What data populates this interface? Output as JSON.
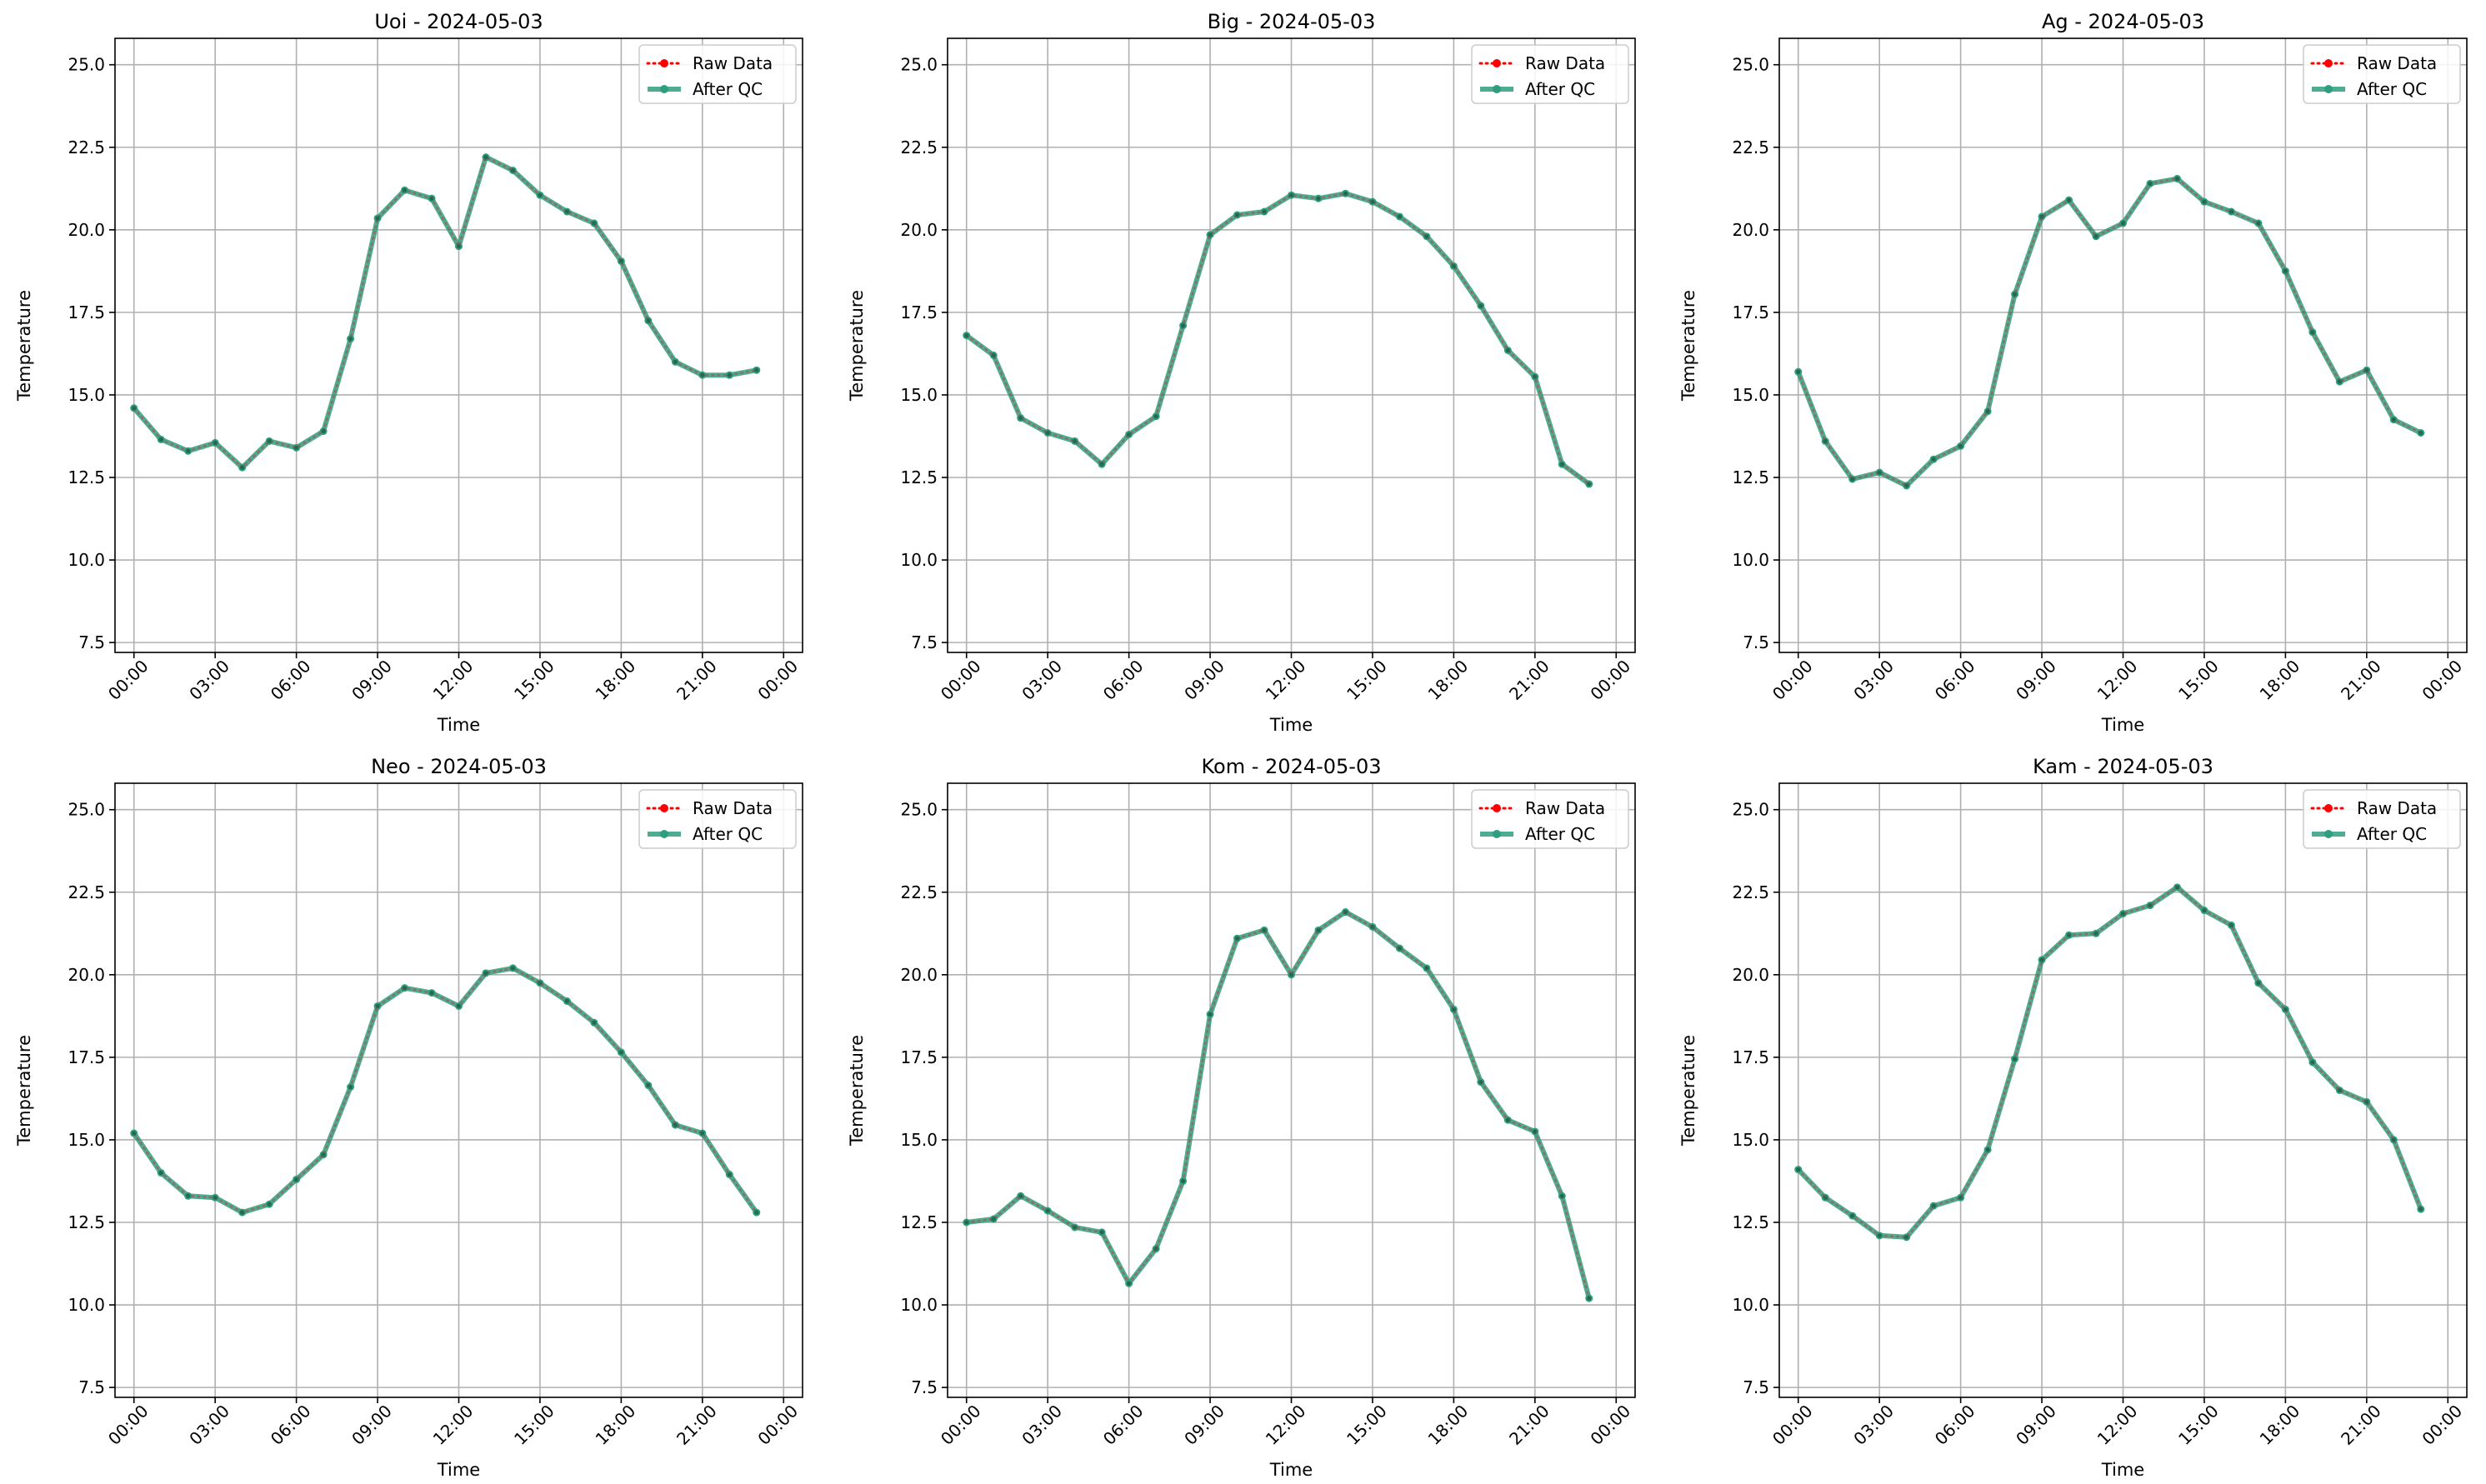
{
  "colors": {
    "raw": "#ff0000",
    "qc": "#2e9e7e",
    "grid": "#b0b0b0",
    "axis": "#000000"
  },
  "legend": {
    "raw_label": "Raw Data",
    "qc_label": "After QC",
    "placement": "upper-right"
  },
  "chart_data": [
    {
      "type": "line",
      "title": "Uoi - 2024-05-03",
      "xlabel": "Time",
      "ylabel": "Temperature",
      "ylim": [
        7.2,
        25.8
      ],
      "yticks": [
        "7.5",
        "10.0",
        "12.5",
        "15.0",
        "17.5",
        "20.0",
        "22.5",
        "25.0"
      ],
      "xticks": [
        "00:00",
        "03:00",
        "06:00",
        "09:00",
        "12:00",
        "15:00",
        "18:00",
        "21:00",
        "00:00"
      ],
      "grid": true,
      "x": [
        "00:00",
        "01:00",
        "02:00",
        "03:00",
        "04:00",
        "05:00",
        "06:00",
        "07:00",
        "08:00",
        "09:00",
        "10:00",
        "11:00",
        "12:00",
        "13:00",
        "14:00",
        "15:00",
        "16:00",
        "17:00",
        "18:00",
        "19:00",
        "20:00",
        "21:00",
        "22:00",
        "23:00"
      ],
      "series": [
        {
          "name": "Raw Data",
          "values": [
            14.6,
            13.65,
            13.3,
            13.55,
            12.8,
            13.6,
            13.4,
            13.9,
            16.7,
            20.35,
            21.2,
            20.95,
            19.5,
            22.2,
            21.8,
            21.05,
            20.55,
            20.2,
            19.05,
            17.25,
            16.0,
            15.6,
            15.6,
            15.75
          ]
        },
        {
          "name": "After QC",
          "values": [
            14.6,
            13.65,
            13.3,
            13.55,
            12.8,
            13.6,
            13.4,
            13.9,
            16.7,
            20.35,
            21.2,
            20.95,
            19.5,
            22.2,
            21.8,
            21.05,
            20.55,
            20.2,
            19.05,
            17.25,
            16.0,
            15.6,
            15.6,
            15.75
          ]
        }
      ]
    },
    {
      "type": "line",
      "title": "Big - 2024-05-03",
      "xlabel": "Time",
      "ylabel": "Temperature",
      "ylim": [
        7.2,
        25.8
      ],
      "yticks": [
        "7.5",
        "10.0",
        "12.5",
        "15.0",
        "17.5",
        "20.0",
        "22.5",
        "25.0"
      ],
      "xticks": [
        "00:00",
        "03:00",
        "06:00",
        "09:00",
        "12:00",
        "15:00",
        "18:00",
        "21:00",
        "00:00"
      ],
      "grid": true,
      "x": [
        "00:00",
        "01:00",
        "02:00",
        "03:00",
        "04:00",
        "05:00",
        "06:00",
        "07:00",
        "08:00",
        "09:00",
        "10:00",
        "11:00",
        "12:00",
        "13:00",
        "14:00",
        "15:00",
        "16:00",
        "17:00",
        "18:00",
        "19:00",
        "20:00",
        "21:00",
        "22:00",
        "23:00"
      ],
      "series": [
        {
          "name": "Raw Data",
          "values": [
            16.8,
            16.2,
            14.3,
            13.85,
            13.6,
            12.9,
            13.8,
            14.35,
            17.1,
            19.85,
            20.45,
            20.55,
            21.05,
            20.95,
            21.1,
            20.85,
            20.4,
            19.8,
            18.9,
            17.7,
            16.35,
            15.55,
            12.9,
            12.3
          ]
        },
        {
          "name": "After QC",
          "values": [
            16.8,
            16.2,
            14.3,
            13.85,
            13.6,
            12.9,
            13.8,
            14.35,
            17.1,
            19.85,
            20.45,
            20.55,
            21.05,
            20.95,
            21.1,
            20.85,
            20.4,
            19.8,
            18.9,
            17.7,
            16.35,
            15.55,
            12.9,
            12.3
          ]
        }
      ]
    },
    {
      "type": "line",
      "title": "Ag - 2024-05-03",
      "xlabel": "Time",
      "ylabel": "Temperature",
      "ylim": [
        7.2,
        25.8
      ],
      "yticks": [
        "7.5",
        "10.0",
        "12.5",
        "15.0",
        "17.5",
        "20.0",
        "22.5",
        "25.0"
      ],
      "xticks": [
        "00:00",
        "03:00",
        "06:00",
        "09:00",
        "12:00",
        "15:00",
        "18:00",
        "21:00",
        "00:00"
      ],
      "grid": true,
      "x": [
        "00:00",
        "01:00",
        "02:00",
        "03:00",
        "04:00",
        "05:00",
        "06:00",
        "07:00",
        "08:00",
        "09:00",
        "10:00",
        "11:00",
        "12:00",
        "13:00",
        "14:00",
        "15:00",
        "16:00",
        "17:00",
        "18:00",
        "19:00",
        "20:00",
        "21:00",
        "22:00",
        "23:00"
      ],
      "series": [
        {
          "name": "Raw Data",
          "values": [
            15.7,
            13.6,
            12.45,
            12.65,
            12.25,
            13.05,
            13.45,
            14.5,
            18.05,
            20.4,
            20.9,
            19.8,
            20.2,
            21.4,
            21.55,
            20.85,
            20.55,
            20.2,
            18.75,
            16.9,
            15.4,
            15.75,
            14.25,
            13.85
          ]
        },
        {
          "name": "After QC",
          "values": [
            15.7,
            13.6,
            12.45,
            12.65,
            12.25,
            13.05,
            13.45,
            14.5,
            18.05,
            20.4,
            20.9,
            19.8,
            20.2,
            21.4,
            21.55,
            20.85,
            20.55,
            20.2,
            18.75,
            16.9,
            15.4,
            15.75,
            14.25,
            13.85
          ]
        }
      ]
    },
    {
      "type": "line",
      "title": "Neo - 2024-05-03",
      "xlabel": "Time",
      "ylabel": "Temperature",
      "ylim": [
        7.2,
        25.8
      ],
      "yticks": [
        "7.5",
        "10.0",
        "12.5",
        "15.0",
        "17.5",
        "20.0",
        "22.5",
        "25.0"
      ],
      "xticks": [
        "00:00",
        "03:00",
        "06:00",
        "09:00",
        "12:00",
        "15:00",
        "18:00",
        "21:00",
        "00:00"
      ],
      "grid": true,
      "x": [
        "00:00",
        "01:00",
        "02:00",
        "03:00",
        "04:00",
        "05:00",
        "06:00",
        "07:00",
        "08:00",
        "09:00",
        "10:00",
        "11:00",
        "12:00",
        "13:00",
        "14:00",
        "15:00",
        "16:00",
        "17:00",
        "18:00",
        "19:00",
        "20:00",
        "21:00",
        "22:00",
        "23:00"
      ],
      "series": [
        {
          "name": "Raw Data",
          "values": [
            15.2,
            14.0,
            13.3,
            13.25,
            12.8,
            13.05,
            13.8,
            14.55,
            16.6,
            19.05,
            19.6,
            19.45,
            19.05,
            20.05,
            20.2,
            19.75,
            19.2,
            18.55,
            17.65,
            16.65,
            15.45,
            15.2,
            13.95,
            12.8
          ]
        },
        {
          "name": "After QC",
          "values": [
            15.2,
            14.0,
            13.3,
            13.25,
            12.8,
            13.05,
            13.8,
            14.55,
            16.6,
            19.05,
            19.6,
            19.45,
            19.05,
            20.05,
            20.2,
            19.75,
            19.2,
            18.55,
            17.65,
            16.65,
            15.45,
            15.2,
            13.95,
            12.8
          ]
        }
      ]
    },
    {
      "type": "line",
      "title": "Kom - 2024-05-03",
      "xlabel": "Time",
      "ylabel": "Temperature",
      "ylim": [
        7.2,
        25.8
      ],
      "yticks": [
        "7.5",
        "10.0",
        "12.5",
        "15.0",
        "17.5",
        "20.0",
        "22.5",
        "25.0"
      ],
      "xticks": [
        "00:00",
        "03:00",
        "06:00",
        "09:00",
        "12:00",
        "15:00",
        "18:00",
        "21:00",
        "00:00"
      ],
      "grid": true,
      "x": [
        "00:00",
        "01:00",
        "02:00",
        "03:00",
        "04:00",
        "05:00",
        "06:00",
        "07:00",
        "08:00",
        "09:00",
        "10:00",
        "11:00",
        "12:00",
        "13:00",
        "14:00",
        "15:00",
        "16:00",
        "17:00",
        "18:00",
        "19:00",
        "20:00",
        "21:00",
        "22:00",
        "23:00"
      ],
      "series": [
        {
          "name": "Raw Data",
          "values": [
            12.5,
            12.6,
            13.3,
            12.85,
            12.35,
            12.2,
            10.65,
            11.7,
            13.75,
            18.8,
            21.1,
            21.35,
            20.0,
            21.35,
            21.9,
            21.45,
            20.8,
            20.2,
            18.95,
            16.75,
            15.6,
            15.25,
            13.3,
            10.2
          ]
        },
        {
          "name": "After QC",
          "values": [
            12.5,
            12.6,
            13.3,
            12.85,
            12.35,
            12.2,
            10.65,
            11.7,
            13.75,
            18.8,
            21.1,
            21.35,
            20.0,
            21.35,
            21.9,
            21.45,
            20.8,
            20.2,
            18.95,
            16.75,
            15.6,
            15.25,
            13.3,
            10.2
          ]
        }
      ]
    },
    {
      "type": "line",
      "title": "Kam - 2024-05-03",
      "xlabel": "Time",
      "ylabel": "Temperature",
      "ylim": [
        7.2,
        25.8
      ],
      "yticks": [
        "7.5",
        "10.0",
        "12.5",
        "15.0",
        "17.5",
        "20.0",
        "22.5",
        "25.0"
      ],
      "xticks": [
        "00:00",
        "03:00",
        "06:00",
        "09:00",
        "12:00",
        "15:00",
        "18:00",
        "21:00",
        "00:00"
      ],
      "grid": true,
      "x": [
        "00:00",
        "01:00",
        "02:00",
        "03:00",
        "04:00",
        "05:00",
        "06:00",
        "07:00",
        "08:00",
        "09:00",
        "10:00",
        "11:00",
        "12:00",
        "13:00",
        "14:00",
        "15:00",
        "16:00",
        "17:00",
        "18:00",
        "19:00",
        "20:00",
        "21:00",
        "22:00",
        "23:00"
      ],
      "series": [
        {
          "name": "Raw Data",
          "values": [
            14.1,
            13.25,
            12.7,
            12.1,
            12.05,
            13.0,
            13.25,
            14.7,
            17.45,
            20.45,
            21.2,
            21.25,
            21.85,
            22.1,
            22.65,
            21.95,
            21.5,
            19.75,
            18.95,
            17.35,
            16.5,
            16.15,
            15.0,
            12.9
          ]
        },
        {
          "name": "After QC",
          "values": [
            14.1,
            13.25,
            12.7,
            12.1,
            12.05,
            13.0,
            13.25,
            14.7,
            17.45,
            20.45,
            21.2,
            21.25,
            21.85,
            22.1,
            22.65,
            21.95,
            21.5,
            19.75,
            18.95,
            17.35,
            16.5,
            16.15,
            15.0,
            12.9
          ]
        }
      ]
    }
  ]
}
